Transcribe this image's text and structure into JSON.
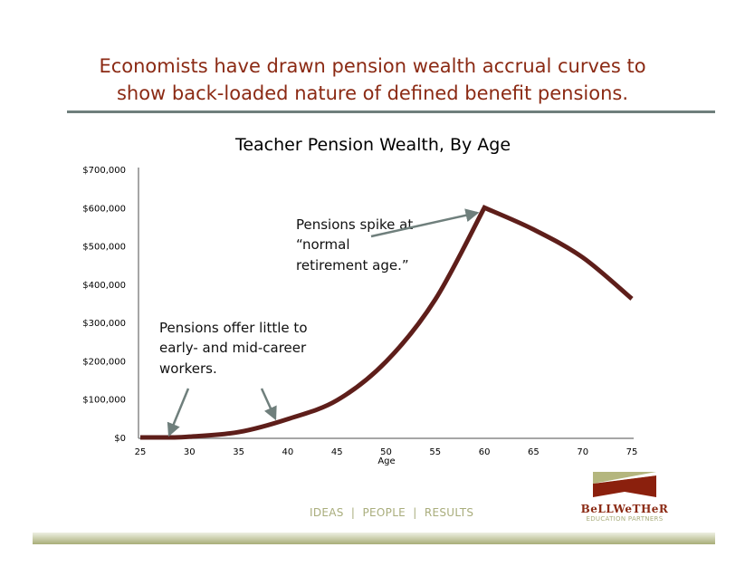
{
  "headline": [
    "Economists have drawn pension wealth accrual curves to",
    "show back-loaded nature of defined benefit pensions."
  ],
  "chart_data": {
    "type": "line",
    "title": "Teacher Pension Wealth, By Age",
    "xlabel": "Age",
    "ylabel": "",
    "xlim": [
      25,
      75
    ],
    "ylim": [
      0,
      700000
    ],
    "xticks": [
      "25",
      "30",
      "35",
      "40",
      "45",
      "50",
      "55",
      "60",
      "65",
      "70",
      "75"
    ],
    "yticks": [
      "$0",
      "$100,000",
      "$200,000",
      "$300,000",
      "$400,000",
      "$500,000",
      "$600,000",
      "$700,000"
    ],
    "x": [
      25,
      28,
      30,
      35,
      40,
      45,
      50,
      55,
      60,
      65,
      70,
      75
    ],
    "values": [
      0,
      0,
      2000,
      14000,
      48000,
      97000,
      198000,
      360000,
      600000,
      543000,
      470000,
      362000
    ],
    "line_color": "#5e1e1a",
    "grid": false,
    "annotations": {
      "left": [
        "Pensions offer little to",
        "early- and mid-career",
        "workers."
      ],
      "right": [
        "Pensions spike at",
        "“normal",
        "retirement age.”"
      ]
    },
    "arrow_color": "#6f7f7c"
  },
  "footer": {
    "tagline": "IDEAS  |  PEOPLE  |  RESULTS",
    "logo_name": "BeLLWeTHeR",
    "logo_sub": "EDUCATION PARTNERS"
  }
}
